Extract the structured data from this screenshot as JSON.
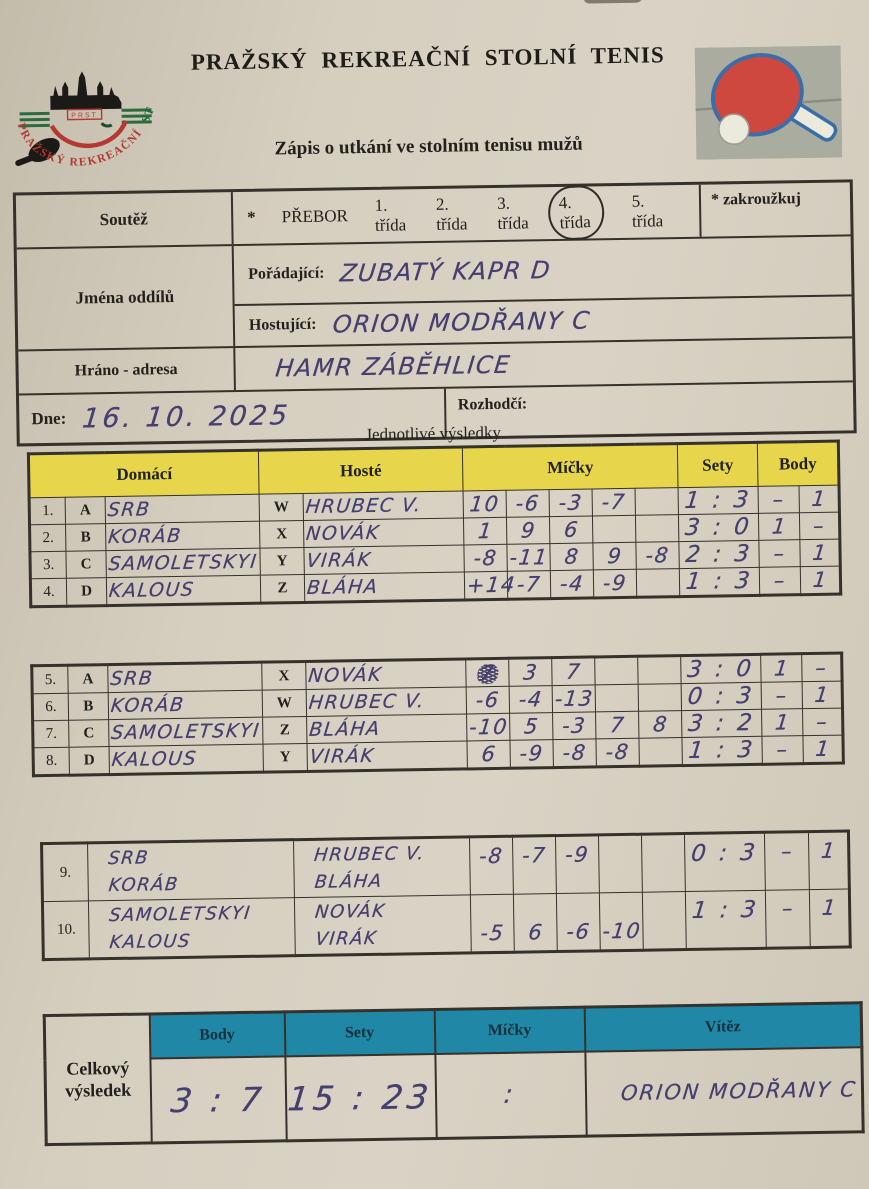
{
  "header": {
    "title": "PRAŽSKÝ REKREAČNÍ STOLNÍ TENIS",
    "subtitle": "Zápis o utkání ve stolním tenisu mužů",
    "logo_abbr": "PRST",
    "logo_ring_left": "PRAŽSKÝ REKREAČNÍ",
    "logo_ring_right": "STOLNÍ TENIS"
  },
  "info": {
    "soutez_label": "Soutěž",
    "soutez_star": "*",
    "soutez_options": [
      "PŘEBOR",
      "1. třída",
      "2. třída",
      "3. třída",
      "4. třída",
      "5. třída"
    ],
    "circled_option": "4. třída",
    "zakrouzkuj": "* zakroužkuj",
    "jmena_label": "Jména oddílů",
    "poradajici_label": "Pořádající:",
    "poradajici_value": "ZUBATÝ KAPR D",
    "hostujici_label": "Hostující:",
    "hostujici_value": "ORION MODŘANY C",
    "hrano_label": "Hráno - adresa",
    "hrano_value": "HAMR ZÁBĚHLICE",
    "dne_label": "Dne:",
    "dne_value": "16. 10. 2025",
    "rozhodci_label": "Rozhodčí:"
  },
  "results": {
    "section_title": "Jednotlivé výsledky",
    "headers": {
      "domaci": "Domácí",
      "hoste": "Hosté",
      "micky": "Míčky",
      "sety": "Sety",
      "body": "Body"
    },
    "singles1": [
      {
        "num": "1.",
        "dl": "A",
        "dn": "SRB",
        "hl": "W",
        "hn": "HRUBEC V.",
        "micky": [
          "10",
          "-6",
          "-3",
          "-7",
          ""
        ],
        "sety": "1 : 3",
        "body": [
          "–",
          "1"
        ]
      },
      {
        "num": "2.",
        "dl": "B",
        "dn": "KORÁB",
        "hl": "X",
        "hn": "NOVÁK",
        "micky": [
          "1",
          "9",
          "6",
          "",
          ""
        ],
        "sety": "3 : 0",
        "body": [
          "1",
          "–"
        ]
      },
      {
        "num": "3.",
        "dl": "C",
        "dn": "SAMOLETSKYI",
        "hl": "Y",
        "hn": "VIRÁK",
        "micky": [
          "-8",
          "-11",
          "8",
          "9",
          "-8"
        ],
        "sety": "2 : 3",
        "body": [
          "–",
          "1"
        ]
      },
      {
        "num": "4.",
        "dl": "D",
        "dn": "KALOUS",
        "hl": "Z",
        "hn": "BLÁHA",
        "micky": [
          "+14",
          "-7",
          "-4",
          "-9",
          ""
        ],
        "sety": "1 : 3",
        "body": [
          "–",
          "1"
        ]
      }
    ],
    "singles2": [
      {
        "num": "5.",
        "dl": "A",
        "dn": "SRB",
        "hl": "X",
        "hn": "NOVÁK",
        "micky": [
          "7",
          "3",
          "7",
          "",
          ""
        ],
        "scratch": [
          0
        ],
        "sety": "3 : 0",
        "body": [
          "1",
          "–"
        ]
      },
      {
        "num": "6.",
        "dl": "B",
        "dn": "KORÁB",
        "hl": "W",
        "hn": "HRUBEC V.",
        "micky": [
          "-6",
          "-4",
          "-13",
          "",
          ""
        ],
        "sety": "0 : 3",
        "body": [
          "–",
          "1"
        ]
      },
      {
        "num": "7.",
        "dl": "C",
        "dn": "SAMOLETSKYI",
        "hl": "Z",
        "hn": "BLÁHA",
        "micky": [
          "-10",
          "5",
          "-3",
          "7",
          "8"
        ],
        "sety": "3 : 2",
        "body": [
          "1",
          "–"
        ]
      },
      {
        "num": "8.",
        "dl": "D",
        "dn": "KALOUS",
        "hl": "Y",
        "hn": "VIRÁK",
        "micky": [
          "6",
          "-9",
          "-8",
          "-8",
          ""
        ],
        "sety": "1 : 3",
        "body": [
          "–",
          "1"
        ]
      }
    ],
    "doubles": [
      {
        "num": "9.",
        "dn": [
          "SRB",
          "KORÁB"
        ],
        "hn": [
          "HRUBEC V.",
          "BLÁHA"
        ],
        "micky": [
          "-8",
          "-7",
          "-9",
          "",
          ""
        ],
        "valign": "top",
        "sety": "0 : 3",
        "body": [
          "–",
          "1"
        ]
      },
      {
        "num": "10.",
        "dn": [
          "SAMOLETSKYI",
          "KALOUS"
        ],
        "hn": [
          "NOVÁK",
          "VIRÁK"
        ],
        "micky": [
          "-5",
          "6",
          "-6",
          "-10",
          ""
        ],
        "valign": "bottom",
        "sety": "1 : 3",
        "body": [
          "–",
          "1"
        ]
      }
    ]
  },
  "summary": {
    "label": "Celkový výsledek",
    "headers": [
      "Body",
      "Sety",
      "Míčky",
      "Vítěz"
    ],
    "body": "3 : 7",
    "sety": "15 : 23",
    "micky": ":",
    "vitez": "ORION MODŘANY C"
  },
  "colors": {
    "paper": "#d6cfc0",
    "header_yellow": "#e7d64b",
    "header_teal": "#2187a6",
    "pen_ink": "#454070",
    "print_ink": "#23211d",
    "paddle_red": "#cf4840",
    "paddle_outline_blue": "#3a6ea8"
  }
}
